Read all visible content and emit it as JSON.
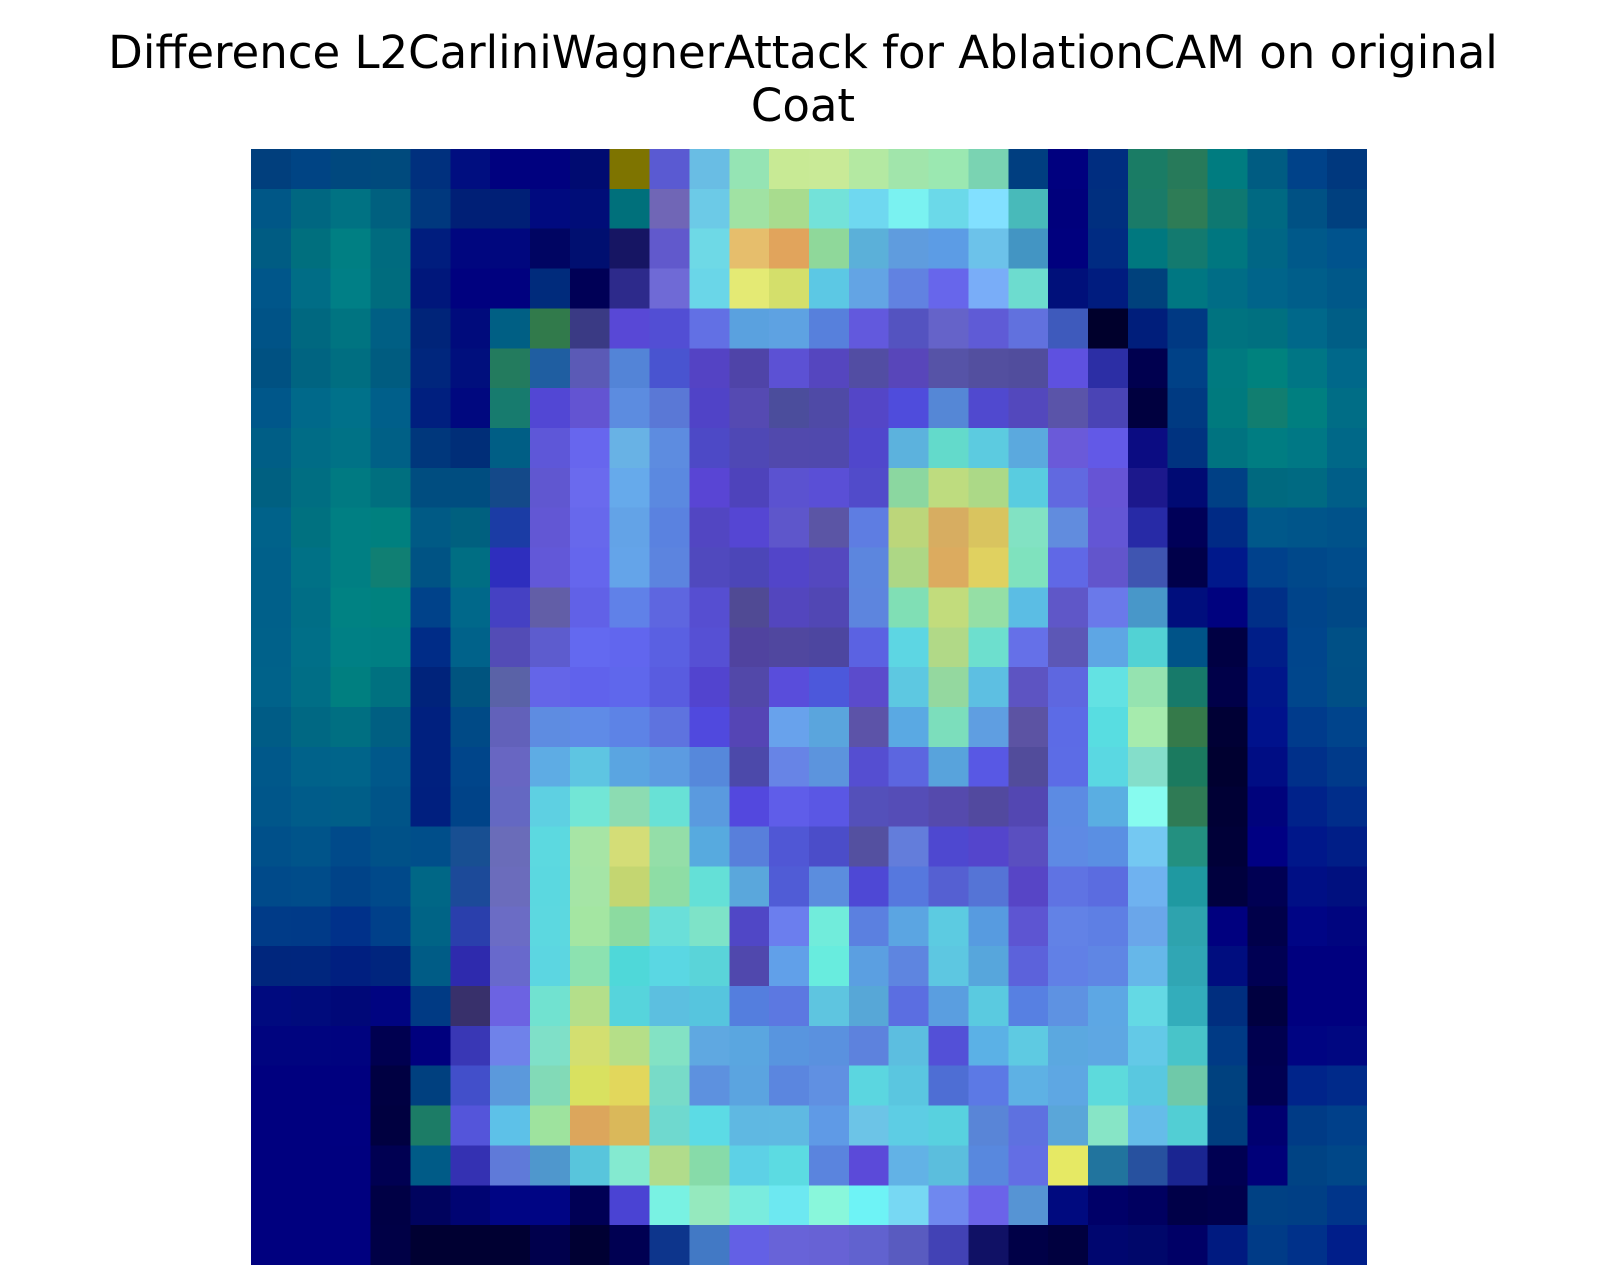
{
  "chart_data": {
    "type": "heatmap",
    "title_line1": "Difference L2CarliniWagnerAttack for AblationCAM on original",
    "title_line2": "Coat",
    "xlabel": "",
    "ylabel": "",
    "axes_visible": false,
    "grid": false,
    "colormap": "blend of coat image with jet heatmap",
    "rows": 28,
    "cols": 28,
    "cells": [
      [
        "#013f7d",
        "#004484",
        "#00487e",
        "#004a7d",
        "#00307e",
        "#000e80",
        "#00017f",
        "#00017f",
        "#000b71",
        "#7e7400",
        "#5a5ad2",
        "#69bde4",
        "#95e4b4",
        "#c8ea95",
        "#c9ea97",
        "#b4e9a2",
        "#a1e5ab",
        "#9be8b1",
        "#7ad3b2",
        "#003e80",
        "#00007f",
        "#002d80",
        "#1a7c65",
        "#277a5a",
        "#007c80",
        "#005c82",
        "#004289",
        "#00387e"
      ],
      [
        "#005787",
        "#006781",
        "#007283",
        "#00607f",
        "#00387e",
        "#001f76",
        "#001f76",
        "#000a7f",
        "#000d78",
        "#00707b",
        "#7066b6",
        "#6ccae7",
        "#a0e2a3",
        "#a8dc8e",
        "#73e2d9",
        "#6fd8f0",
        "#7af2f1",
        "#6bd9e9",
        "#82e0ff",
        "#48baba",
        "#00007c",
        "#002f7f",
        "#1a7b68",
        "#2e7c56",
        "#0e7871",
        "#006982",
        "#005184",
        "#00407f"
      ],
      [
        "#005c83",
        "#006f7e",
        "#007f83",
        "#006b7f",
        "#001d7e",
        "#00067f",
        "#00077e",
        "#000562",
        "#000f70",
        "#161563",
        "#6159cc",
        "#6ed9e6",
        "#e6be6c",
        "#e1a45c",
        "#8fd89a",
        "#5bb0d9",
        "#5f9cde",
        "#5c9ce5",
        "#6cc2ea",
        "#4395c3",
        "#00007e",
        "#002b82",
        "#00787f",
        "#137a6f",
        "#007780",
        "#006685",
        "#00598a",
        "#00538d"
      ],
      [
        "#00568a",
        "#006d86",
        "#007f86",
        "#006c7e",
        "#00177b",
        "#00017f",
        "#00017f",
        "#002b7c",
        "#000056",
        "#2d2a8b",
        "#6f6ad6",
        "#6ad6e8",
        "#e4ea74",
        "#d4df6b",
        "#5cc8e4",
        "#63a4e4",
        "#6182e1",
        "#6766eb",
        "#79adf8",
        "#6ddccf",
        "#00107a",
        "#001c7f",
        "#00417c",
        "#007782",
        "#006d86",
        "#00648a",
        "#005e8a",
        "#005889"
      ],
      [
        "#005387",
        "#006880",
        "#007481",
        "#005f84",
        "#002479",
        "#000b7c",
        "#005f84",
        "#317a4b",
        "#3a3a84",
        "#5848d6",
        "#524ed4",
        "#6270e4",
        "#5aa1df",
        "#5ea2e2",
        "#5780dc",
        "#6259dd",
        "#5453c0",
        "#6563c9",
        "#5f5bd6",
        "#6171de",
        "#3e5abc",
        "#00002c",
        "#001e7b",
        "#003983",
        "#007380",
        "#007080",
        "#00688a",
        "#005e86"
      ],
      [
        "#005182",
        "#006481",
        "#006e81",
        "#005c80",
        "#00267d",
        "#000f7d",
        "#237b5e",
        "#1f5ea1",
        "#5b5ab6",
        "#5384d7",
        "#4954d0",
        "#5443c4",
        "#4f44a8",
        "#5c51d4",
        "#5546bf",
        "#524da3",
        "#5846ba",
        "#5653a7",
        "#534f9f",
        "#514d9d",
        "#5e51e0",
        "#2c2ea5",
        "#00004f",
        "#004187",
        "#007a80",
        "#00827e",
        "#007685",
        "#00688a"
      ],
      [
        "#00578a",
        "#00698a",
        "#00718a",
        "#005f8a",
        "#001f7f",
        "#00087f",
        "#177b6e",
        "#5247d4",
        "#6354d2",
        "#5c8ce0",
        "#5a78d6",
        "#5043c7",
        "#554ab2",
        "#4b4d9c",
        "#4f4aa6",
        "#5446c7",
        "#4f4cdc",
        "#5587d6",
        "#5049cf",
        "#5348bd",
        "#5a54a9",
        "#4a44b5",
        "#00003f",
        "#003a82",
        "#007a7e",
        "#117e70",
        "#007f80",
        "#006d86"
      ],
      [
        "#005e86",
        "#006c86",
        "#007286",
        "#006086",
        "#00377c",
        "#002e78",
        "#005e85",
        "#5e57d8",
        "#6766ee",
        "#68b2e5",
        "#5d8ce0",
        "#4d49c6",
        "#4f48b5",
        "#5149ad",
        "#5049ad",
        "#5047cc",
        "#5cb2dd",
        "#63dacb",
        "#5ccbe0",
        "#5ba9de",
        "#6a5ad9",
        "#6259e7",
        "#0b0c82",
        "#003380",
        "#007380",
        "#007d82",
        "#007885",
        "#006888"
      ],
      [
        "#006081",
        "#006e82",
        "#007a82",
        "#006f7f",
        "#004d80",
        "#004d80",
        "#144989",
        "#6057d0",
        "#6a6aee",
        "#66aaeb",
        "#5b89e0",
        "#5945d4",
        "#4e43bb",
        "#5b52d0",
        "#5a4fd6",
        "#514bca",
        "#8bd7a0",
        "#bedc7f",
        "#acd987",
        "#59cce0",
        "#6169e0",
        "#6654d5",
        "#1c188c",
        "#000a73",
        "#004085",
        "#00697f",
        "#006a82",
        "#005e88"
      ],
      [
        "#00628a",
        "#007180",
        "#007f83",
        "#00807f",
        "#005a85",
        "#00607f",
        "#1b3ca5",
        "#6257d4",
        "#6768ec",
        "#63a3e7",
        "#5a82e0",
        "#5246c2",
        "#5546d3",
        "#5e56cb",
        "#5b55a5",
        "#5e7de2",
        "#bcd67a",
        "#d7ad61",
        "#d9c45f",
        "#82e2c3",
        "#618cde",
        "#6356d5",
        "#272aa6",
        "#000058",
        "#002a85",
        "#00588a",
        "#00558a",
        "#00528a"
      ],
      [
        "#00608a",
        "#007186",
        "#007f83",
        "#107f73",
        "#005384",
        "#006e83",
        "#2e2ebe",
        "#6258d8",
        "#6566ed",
        "#64a4e9",
        "#5c84df",
        "#5049be",
        "#4c46b8",
        "#5245c9",
        "#5448bf",
        "#5c86de",
        "#add785",
        "#dcab5f",
        "#e0d160",
        "#7fe2be",
        "#6068e6",
        "#6255cc",
        "#3f55b1",
        "#00004a",
        "#00188b",
        "#00418c",
        "#00488a",
        "#004c8b"
      ],
      [
        "#00608a",
        "#006e86",
        "#008283",
        "#00827f",
        "#00428a",
        "#00688a",
        "#4541c3",
        "#625ea7",
        "#6161e7",
        "#6081e8",
        "#5e66e0",
        "#564ed1",
        "#504a94",
        "#5346be",
        "#5147b4",
        "#5d85de",
        "#80dfb5",
        "#c2dc7c",
        "#95dfa5",
        "#5bbde4",
        "#5f57c8",
        "#6a79ea",
        "#4897c9",
        "#000e7d",
        "#00027f",
        "#002f87",
        "#00448a",
        "#004886"
      ],
      [
        "#00618a",
        "#006f88",
        "#008085",
        "#007f83",
        "#002c87",
        "#00628a",
        "#534cb6",
        "#5d5cce",
        "#6369f0",
        "#6166ee",
        "#5a60e2",
        "#5650d4",
        "#50439f",
        "#50479f",
        "#4d46a0",
        "#5b62e2",
        "#5dd6e3",
        "#b1d987",
        "#6ddfce",
        "#6570e8",
        "#5c57b6",
        "#5ea6e4",
        "#52d2d4",
        "#005388",
        "#000043",
        "#001e88",
        "#00458c",
        "#005086"
      ],
      [
        "#00628a",
        "#006e86",
        "#007f80",
        "#007180",
        "#00237b",
        "#00547f",
        "#5a62a7",
        "#6465e8",
        "#6062ec",
        "#5f67ec",
        "#595ce0",
        "#5244cf",
        "#5248a9",
        "#594ddb",
        "#4c58db",
        "#5b4bcc",
        "#5dc8e1",
        "#94d89f",
        "#5dbfe2",
        "#5d54c2",
        "#5e67e0",
        "#63e2e3",
        "#95e3b0",
        "#177a6a",
        "#000049",
        "#00168a",
        "#00468c",
        "#004f86"
      ],
      [
        "#005c86",
        "#006883",
        "#006f82",
        "#005f82",
        "#00207f",
        "#004a86",
        "#6261ba",
        "#5e8ce1",
        "#5f8be7",
        "#5d83e6",
        "#5e73df",
        "#5049de",
        "#5545b5",
        "#68a2ec",
        "#5aa5dd",
        "#5c53a8",
        "#5aa9e3",
        "#7cdebc",
        "#5f9ee1",
        "#5c53a3",
        "#5c6be6",
        "#58dde1",
        "#a6ebad",
        "#357a4a",
        "#000035",
        "#00128c",
        "#003b8c",
        "#00448c"
      ],
      [
        "#00588a",
        "#00628a",
        "#00648a",
        "#00588a",
        "#00207f",
        "#00458a",
        "#6866c2",
        "#5eace4",
        "#5ec5e2",
        "#5aa5e1",
        "#5c9be1",
        "#5688db",
        "#4c49aa",
        "#6784e6",
        "#5c94dd",
        "#554ed1",
        "#5c66e0",
        "#58a3dc",
        "#5858e4",
        "#524c9b",
        "#5c6ce6",
        "#5ad8e2",
        "#84deca",
        "#1b7a5f",
        "#000030",
        "#000d84",
        "#00308a",
        "#003a8a"
      ],
      [
        "#00568a",
        "#005c8a",
        "#005e88",
        "#005488",
        "#001f7f",
        "#004388",
        "#6468c2",
        "#5ed0e2",
        "#72e6d6",
        "#8cdcb2",
        "#68e1d6",
        "#5a9adf",
        "#5348de",
        "#5f5de9",
        "#5a57e4",
        "#5450ba",
        "#554db7",
        "#554aad",
        "#52499f",
        "#5347b2",
        "#5c8be3",
        "#5aaee2",
        "#87fbef",
        "#2f7b55",
        "#000035",
        "#00037c",
        "#00228a",
        "#002d8a"
      ],
      [
        "#00508a",
        "#00548a",
        "#004a8a",
        "#005188",
        "#004e8a",
        "#184f92",
        "#6a6cb9",
        "#5cd9e0",
        "#a7e5a5",
        "#d4dd77",
        "#94dea8",
        "#57aadf",
        "#587fdb",
        "#5057d5",
        "#4b4dc9",
        "#5450a0",
        "#637ddb",
        "#4e48d0",
        "#5445cc",
        "#5a4fc0",
        "#5e8ae4",
        "#5a8fe3",
        "#74c8f2",
        "#239080",
        "#000038",
        "#000083",
        "#00178a",
        "#001e87"
      ],
      [
        "#004a8a",
        "#004c8a",
        "#004388",
        "#00498a",
        "#006786",
        "#1c4a99",
        "#6b6cbc",
        "#5bd8e0",
        "#a5e5a6",
        "#c4d671",
        "#8edda5",
        "#64e0d7",
        "#5aa7dc",
        "#505cd6",
        "#5b8dde",
        "#4e48d5",
        "#5678de",
        "#5560d2",
        "#5574d6",
        "#5745c6",
        "#5f73e3",
        "#5b6ce0",
        "#6fb2f0",
        "#1f99a1",
        "#00003e",
        "#000053",
        "#000f85",
        "#00107f"
      ],
      [
        "#003b88",
        "#003a88",
        "#00318a",
        "#00408a",
        "#006486",
        "#2a3fac",
        "#6b6cc5",
        "#5cd8e0",
        "#a4e6a2",
        "#8cdba0",
        "#6adfd9",
        "#7ee3c8",
        "#5047c6",
        "#6b7eee",
        "#71ecdb",
        "#5b80e0",
        "#5ba5e2",
        "#5ccbe1",
        "#579be0",
        "#5d55d2",
        "#6282e6",
        "#5e7fe4",
        "#6aa6ea",
        "#2ea3ae",
        "#00007f",
        "#00004a",
        "#000585",
        "#00057f"
      ],
      [
        "#00267d",
        "#00267e",
        "#001f80",
        "#00257e",
        "#005c86",
        "#2e2aad",
        "#6869cc",
        "#5cd6e1",
        "#8ce2b0",
        "#4fd8d9",
        "#5ad7e3",
        "#5ad4d9",
        "#5048ad",
        "#61a0e9",
        "#68ecde",
        "#5b9fe1",
        "#5e85e0",
        "#5dc7e1",
        "#57a6dc",
        "#5c62db",
        "#6180e6",
        "#5f86e4",
        "#66b7e9",
        "#30a6b4",
        "#000d7f",
        "#000053",
        "#00007f",
        "#00007f"
      ],
      [
        "#000a7f",
        "#000b7c",
        "#000878",
        "#000481",
        "#003a84",
        "#38306b",
        "#6c63e2",
        "#71e2d0",
        "#b4df8a",
        "#56d4dc",
        "#5cbfe0",
        "#56c5de",
        "#547ede",
        "#5c78e1",
        "#5ec5e0",
        "#57a7d7",
        "#5b6ee1",
        "#5a9ee0",
        "#5acae0",
        "#5780e2",
        "#5e92e2",
        "#5da7e4",
        "#64d9e4",
        "#33adbb",
        "#002e7f",
        "#000040",
        "#00007f",
        "#00007f"
      ],
      [
        "#00047f",
        "#00047f",
        "#00037f",
        "#000050",
        "#00007e",
        "#3937b5",
        "#6f82ea",
        "#7fe0c8",
        "#d3df70",
        "#b5df88",
        "#83e2c4",
        "#5fa8e1",
        "#5aa6e0",
        "#5895df",
        "#5a91df",
        "#5d82dd",
        "#5cbee0",
        "#5350d7",
        "#5bb1e6",
        "#5ecae2",
        "#5ba8e0",
        "#5ea7e3",
        "#63c9e7",
        "#48c4c9",
        "#003a85",
        "#00004f",
        "#000482",
        "#000781"
      ],
      [
        "#00007f",
        "#00007f",
        "#00007f",
        "#000042",
        "#00407f",
        "#424fca",
        "#5b99dc",
        "#82dab7",
        "#d9e160",
        "#e2d75c",
        "#78dbc8",
        "#5d91df",
        "#5ba4e0",
        "#5b86df",
        "#6090e2",
        "#5bd6e0",
        "#5ac6e0",
        "#4e6ed4",
        "#5c79e5",
        "#5eb1e4",
        "#5ea7e3",
        "#5ddadc",
        "#59c8e0",
        "#6fc9a9",
        "#00417f",
        "#000052",
        "#00248a",
        "#002a8a"
      ],
      [
        "#00007f",
        "#00007f",
        "#000080",
        "#000040",
        "#1c7c66",
        "#5455da",
        "#5dc1e8",
        "#9ee39e",
        "#dca65c",
        "#dab85a",
        "#6fd9cf",
        "#5cdbe5",
        "#5fb8e2",
        "#5fb9e2",
        "#5f9ae6",
        "#6cc4e7",
        "#5dcde4",
        "#58d1df",
        "#5985d7",
        "#5e71e0",
        "#5aa6d9",
        "#87e5c6",
        "#65bce9",
        "#52ced4",
        "#003e7f",
        "#000070",
        "#003b86",
        "#00408a"
      ],
      [
        "#00007f",
        "#00007f",
        "#00007f",
        "#000052",
        "#005b87",
        "#3431b2",
        "#5f7ad9",
        "#4f97cd",
        "#58c5dc",
        "#84ead0",
        "#b1dc8b",
        "#87dba9",
        "#5dd1e6",
        "#5cdbe2",
        "#5a84de",
        "#5b4ad9",
        "#62b2e6",
        "#5bbedd",
        "#5888de",
        "#636ee4",
        "#e6e964",
        "#21749e",
        "#27519f",
        "#1a2591",
        "#000052",
        "#000079",
        "#004384",
        "#004788"
      ],
      [
        "#00007f",
        "#00007f",
        "#00007f",
        "#000045",
        "#00035e",
        "#000472",
        "#000584",
        "#000584",
        "#000055",
        "#4a43d3",
        "#79f2e3",
        "#95e9be",
        "#7aecde",
        "#6de8f1",
        "#89f7db",
        "#6ef3f6",
        "#77d8f3",
        "#6f88ef",
        "#6b63e9",
        "#5694d4",
        "#000a7f",
        "#000068",
        "#000060",
        "#000048",
        "#00004c",
        "#004184",
        "#003f85",
        "#00358a"
      ],
      [
        "#00007f",
        "#00007f",
        "#00007f",
        "#000046",
        "#000032",
        "#000032",
        "#000032",
        "#00004c",
        "#000033",
        "#000052",
        "#0d358c",
        "#4279c5",
        "#6360e5",
        "#6863d8",
        "#6762d5",
        "#6162cf",
        "#595bc0",
        "#4242b5",
        "#101165",
        "#000047",
        "#00003f",
        "#00066f",
        "#00076a",
        "#000066",
        "#001a80",
        "#003b87",
        "#00318a",
        "#001e8a"
      ]
    ]
  }
}
